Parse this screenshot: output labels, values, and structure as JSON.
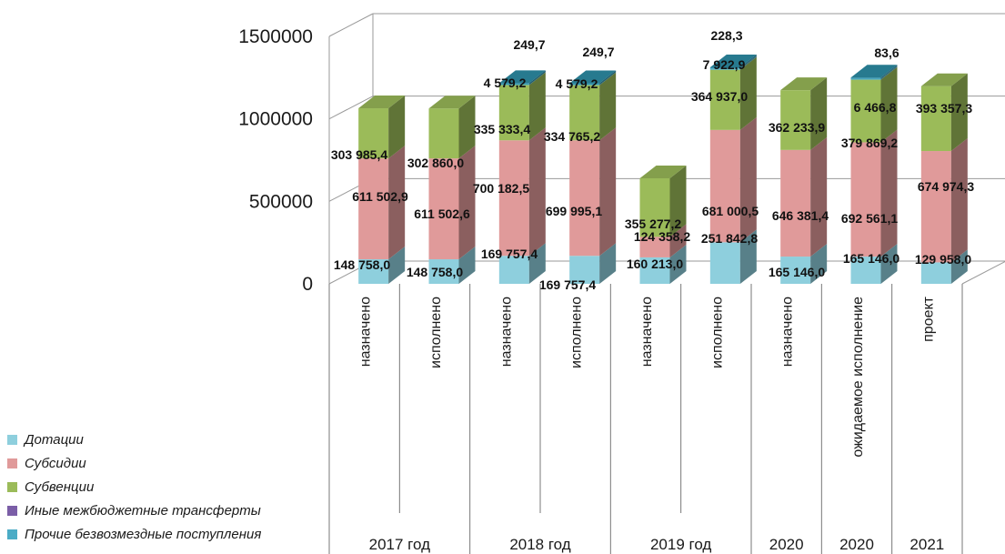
{
  "chart_data": {
    "type": "bar",
    "stacked": true,
    "three_d": true,
    "ylim": [
      0,
      1500000
    ],
    "yticks": [
      "0",
      "500000",
      "1000000",
      "1500000"
    ],
    "ytick_values": [
      0,
      500000,
      1000000,
      1500000
    ],
    "categories": [
      "назначено",
      "исполнено",
      "назначено",
      "исполнено",
      "назначено",
      "исполнено",
      "назначено",
      "ожидаемое исполнение",
      "проект"
    ],
    "groups": [
      {
        "label": "2017 год",
        "span": 2
      },
      {
        "label": "2018 год",
        "span": 2
      },
      {
        "label": "2019 год",
        "span": 2
      },
      {
        "label": "2020",
        "span": 1
      },
      {
        "label": "2020",
        "span": 1
      },
      {
        "label": "2021",
        "span": 1
      }
    ],
    "series": [
      {
        "name": "Дотации",
        "color": "#8ecfdd",
        "values": [
          148758.0,
          148758.0,
          169757.4,
          169757.4,
          160213.0,
          251842.8,
          165146.0,
          165146.0,
          129958.0
        ],
        "labels": [
          "148 758,0",
          "148 758,0",
          "169 757,4",
          "169 757,4",
          "160 213,0",
          "251 842,8",
          "165 146,0",
          "165 146,0",
          "129 958,0"
        ]
      },
      {
        "name": "Субсидии",
        "color": "#e09a9a",
        "values": [
          611502.9,
          611502.6,
          700182.5,
          699995.1,
          124358.2,
          681000.5,
          646381.4,
          692561.1,
          674974.3
        ],
        "labels": [
          "611 502,9",
          "611 502,6",
          "700 182,5",
          "699 995,1",
          "124 358,2",
          "681 000,5",
          "646 381,4",
          "692 561,1",
          "674 974,3"
        ]
      },
      {
        "name": "Субвенции",
        "color": "#9bbb59",
        "values": [
          303985.4,
          302860.0,
          335333.4,
          334765.2,
          355277.2,
          364937.0,
          362233.9,
          379869.2,
          393357.3
        ],
        "labels": [
          "303 985,4",
          "302 860,0",
          "335 333,4",
          "334 765,2",
          "355 277,2",
          "364 937,0",
          "362 233,9",
          "379 869,2",
          "393 357,3"
        ]
      },
      {
        "name": "Иные межбюджетные трансферты",
        "color": "#4bacc6",
        "values": [
          0,
          0,
          4579.2,
          4579.2,
          0,
          7922.9,
          0,
          6466.8,
          0
        ],
        "labels": [
          "",
          "",
          "4 579,2",
          "4 579,2",
          "",
          "7 922,9",
          "",
          "6 466,8",
          ""
        ]
      },
      {
        "name": "Прочие безвозмездные поступления",
        "color": "#2e8fa8",
        "values": [
          0,
          0,
          249.7,
          249.7,
          0,
          228.3,
          0,
          83.6,
          0
        ],
        "labels": [
          "",
          "",
          "249,7",
          "249,7",
          "",
          "228,3",
          "",
          "83,6",
          ""
        ]
      }
    ],
    "legend": {
      "position": "bottom-left",
      "items": [
        {
          "label": "Дотации",
          "color": "#8ecfdd"
        },
        {
          "label": "Субсидии",
          "color": "#e09a9a"
        },
        {
          "label": "Субвенции",
          "color": "#9bbb59"
        },
        {
          "label": "Иные межбюджетные трансферты",
          "color": "#7b5ea7"
        },
        {
          "label": "Прочие безвозмездные поступления",
          "color": "#4bacc6"
        }
      ]
    }
  }
}
